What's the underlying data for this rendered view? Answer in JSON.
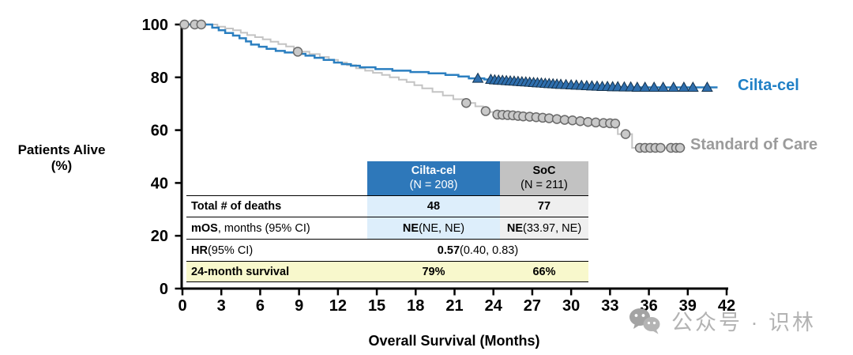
{
  "labels": {
    "y_axis_title_line1": "Patients Alive",
    "y_axis_title_line2": "(%)",
    "x_axis_title": "Overall Survival (Months)",
    "series_label_cilta": "Cilta-cel",
    "series_label_soc": "Standard of Care"
  },
  "table": {
    "header": {
      "cilta_name": "Cilta-cel",
      "cilta_n": "(N = 208)",
      "soc_name": "SoC",
      "soc_n": "(N = 211)"
    },
    "deaths": {
      "label": "Total # of deaths",
      "cilta": "48",
      "soc": "77"
    },
    "mos": {
      "label_bold": "mOS",
      "label_rest": ", months (95% CI)",
      "cilta_bold": "NE",
      "cilta_rest": " (NE, NE)",
      "soc_bold": "NE",
      "soc_rest": " (33.97, NE)"
    },
    "hr": {
      "label_bold": "HR",
      "label_rest": " (95% CI)",
      "value_bold": "0.57",
      "value_rest": " (0.40, 0.83)"
    },
    "surv24": {
      "label": "24-month survival",
      "cilta": "79%",
      "soc": "66%"
    }
  },
  "watermark": {
    "text": "公众号 · 识林",
    "icon": "wechat-icon"
  },
  "colors": {
    "cilta_line": "#2b7fc0",
    "cilta_label": "#2080c6",
    "cilta_triangle_fill": "#2f6fae",
    "cilta_triangle_stroke": "#16344f",
    "soc_line": "#c4c4c4",
    "soc_label": "#9b9b9b",
    "soc_circle_fill": "#c9c9c9",
    "soc_circle_stroke": "#6a6a6a",
    "header_blue": "#2e78ba",
    "header_gray": "#c2c2c2",
    "cell_light_blue": "#ddeefb",
    "cell_light_gray": "#efefef",
    "row_yellow": "#f8f8cc",
    "axis_black": "#000000"
  },
  "chart_data": {
    "type": "line",
    "subtype": "kaplan-meier-step",
    "title": "",
    "xlabel": "Overall Survival (Months)",
    "ylabel": "Patients Alive (%)",
    "xlim": [
      0,
      42
    ],
    "ylim": [
      0,
      100
    ],
    "xticks": [
      0,
      3,
      6,
      9,
      12,
      15,
      18,
      21,
      24,
      27,
      30,
      33,
      36,
      39,
      42
    ],
    "yticks": [
      0,
      20,
      40,
      60,
      80,
      100
    ],
    "grid": false,
    "legend_position": "right-of-curves",
    "annotations": {
      "total_deaths": {
        "cilta_cel": 48,
        "soc": 77
      },
      "mOS_months_95CI": {
        "cilta_cel": "NE (NE, NE)",
        "soc": "NE (33.97, NE)"
      },
      "HR_95CI": "0.57 (0.40, 0.83)",
      "survival_24_month_pct": {
        "cilta_cel": 79,
        "soc": 66
      }
    },
    "series": [
      {
        "name": "Standard of Care",
        "n": 211,
        "color": "#c4c4c4",
        "line_width": 2,
        "marker": "circle",
        "steps": [
          [
            0,
            100
          ],
          [
            2.2,
            100
          ],
          [
            2.7,
            99.2
          ],
          [
            3.3,
            98.5
          ],
          [
            3.9,
            97.8
          ],
          [
            4.5,
            96.9
          ],
          [
            5.0,
            96.0
          ],
          [
            5.6,
            95.2
          ],
          [
            6.2,
            94.4
          ],
          [
            6.8,
            93.5
          ],
          [
            7.4,
            92.6
          ],
          [
            8.0,
            91.7
          ],
          [
            8.6,
            90.7
          ],
          [
            9.0,
            89.7
          ],
          [
            9.8,
            88.8
          ],
          [
            10.6,
            87.7
          ],
          [
            11.3,
            86.6
          ],
          [
            12.0,
            85.6
          ],
          [
            12.7,
            84.6
          ],
          [
            13.4,
            83.4
          ],
          [
            14.1,
            82.5
          ],
          [
            14.7,
            81.7
          ],
          [
            15.4,
            80.9
          ],
          [
            16.0,
            80.0
          ],
          [
            16.7,
            79.1
          ],
          [
            17.3,
            78.2
          ],
          [
            17.9,
            77.0
          ],
          [
            18.5,
            75.8
          ],
          [
            19.3,
            74.5
          ],
          [
            20.1,
            73.1
          ],
          [
            20.9,
            71.7
          ],
          [
            21.7,
            70.3
          ],
          [
            22.6,
            69.0
          ],
          [
            23.2,
            67.8
          ],
          [
            23.7,
            66.9
          ],
          [
            24.2,
            66.0
          ],
          [
            25.2,
            65.5
          ],
          [
            26.2,
            65.0
          ],
          [
            27.2,
            64.5
          ],
          [
            28.2,
            64.0
          ],
          [
            29.2,
            63.6
          ],
          [
            30.3,
            63.2
          ],
          [
            31.5,
            62.8
          ],
          [
            32.6,
            62.5
          ],
          [
            33.6,
            58.5
          ],
          [
            34.7,
            53.3
          ],
          [
            38.8,
            53.3
          ]
        ],
        "censor": [
          [
            0.15,
            100
          ],
          [
            0.95,
            100
          ],
          [
            1.45,
            100
          ],
          [
            8.9,
            89.7
          ],
          [
            21.9,
            70.3
          ],
          [
            23.4,
            67.2
          ],
          [
            24.3,
            65.9
          ],
          [
            24.7,
            65.8
          ],
          [
            25.1,
            65.7
          ],
          [
            25.5,
            65.6
          ],
          [
            25.9,
            65.4
          ],
          [
            26.3,
            65.2
          ],
          [
            26.8,
            65.1
          ],
          [
            27.3,
            64.9
          ],
          [
            27.8,
            64.7
          ],
          [
            28.3,
            64.5
          ],
          [
            28.9,
            64.2
          ],
          [
            29.5,
            63.9
          ],
          [
            30.1,
            63.7
          ],
          [
            30.7,
            63.4
          ],
          [
            31.3,
            63.1
          ],
          [
            31.9,
            62.9
          ],
          [
            32.5,
            62.7
          ],
          [
            33.0,
            62.6
          ],
          [
            33.4,
            62.5
          ],
          [
            34.2,
            58.5
          ],
          [
            35.3,
            53.3
          ],
          [
            35.7,
            53.3
          ],
          [
            36.1,
            53.3
          ],
          [
            36.5,
            53.3
          ],
          [
            36.9,
            53.3
          ],
          [
            37.7,
            53.3
          ],
          [
            38.1,
            53.3
          ],
          [
            38.4,
            53.3
          ]
        ]
      },
      {
        "name": "Cilta-cel",
        "n": 208,
        "color": "#2b7fc0",
        "line_width": 2.5,
        "marker": "triangle",
        "steps": [
          [
            0,
            100
          ],
          [
            1.8,
            100
          ],
          [
            2.3,
            98.8
          ],
          [
            2.8,
            97.8
          ],
          [
            3.3,
            96.8
          ],
          [
            3.9,
            95.8
          ],
          [
            4.4,
            94.8
          ],
          [
            4.9,
            93.6
          ],
          [
            5.3,
            92.4
          ],
          [
            5.9,
            91.6
          ],
          [
            6.5,
            90.8
          ],
          [
            7.2,
            90.0
          ],
          [
            7.9,
            89.4
          ],
          [
            8.7,
            88.9
          ],
          [
            9.5,
            88.2
          ],
          [
            10.2,
            87.4
          ],
          [
            10.9,
            86.6
          ],
          [
            11.7,
            85.6
          ],
          [
            12.3,
            85.0
          ],
          [
            13.0,
            84.4
          ],
          [
            13.7,
            83.8
          ],
          [
            14.9,
            83.1
          ],
          [
            16.2,
            82.5
          ],
          [
            17.6,
            82.0
          ],
          [
            19.0,
            81.5
          ],
          [
            20.3,
            80.9
          ],
          [
            21.3,
            80.3
          ],
          [
            22.1,
            79.6
          ],
          [
            23.3,
            79.2
          ],
          [
            24.4,
            78.7
          ],
          [
            25.4,
            78.3
          ],
          [
            26.4,
            77.9
          ],
          [
            27.4,
            77.5
          ],
          [
            28.4,
            77.1
          ],
          [
            29.4,
            76.8
          ],
          [
            30.4,
            76.5
          ],
          [
            31.4,
            76.2
          ],
          [
            41.3,
            76.2
          ]
        ],
        "censor": [
          [
            22.8,
            79.6
          ],
          [
            23.8,
            79.2
          ],
          [
            24.1,
            79.0
          ],
          [
            24.4,
            78.9
          ],
          [
            24.7,
            78.8
          ],
          [
            25.0,
            78.7
          ],
          [
            25.3,
            78.6
          ],
          [
            25.6,
            78.5
          ],
          [
            25.9,
            78.4
          ],
          [
            26.2,
            78.3
          ],
          [
            26.5,
            78.2
          ],
          [
            26.8,
            78.1
          ],
          [
            27.1,
            78.0
          ],
          [
            27.4,
            77.9
          ],
          [
            27.7,
            77.8
          ],
          [
            28.0,
            77.7
          ],
          [
            28.3,
            77.6
          ],
          [
            28.6,
            77.5
          ],
          [
            28.9,
            77.4
          ],
          [
            29.2,
            77.3
          ],
          [
            29.6,
            77.2
          ],
          [
            30.0,
            77.1
          ],
          [
            30.4,
            77.0
          ],
          [
            30.8,
            76.9
          ],
          [
            31.2,
            76.8
          ],
          [
            31.6,
            76.7
          ],
          [
            32.0,
            76.6
          ],
          [
            32.4,
            76.5
          ],
          [
            32.8,
            76.5
          ],
          [
            33.2,
            76.4
          ],
          [
            33.6,
            76.4
          ],
          [
            34.1,
            76.3
          ],
          [
            34.6,
            76.3
          ],
          [
            35.1,
            76.2
          ],
          [
            35.7,
            76.2
          ],
          [
            36.4,
            76.2
          ],
          [
            37.1,
            76.2
          ],
          [
            37.9,
            76.2
          ],
          [
            38.7,
            76.2
          ],
          [
            39.4,
            76.2
          ],
          [
            40.5,
            76.2
          ]
        ]
      }
    ]
  }
}
